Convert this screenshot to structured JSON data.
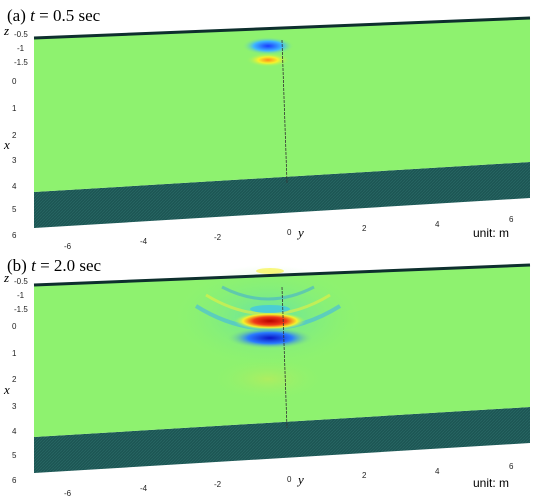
{
  "panels": [
    {
      "prefix": "(a)",
      "var": "t",
      "eq": "= 0.5 sec",
      "z_label": "z",
      "x_label": "x",
      "y_label": "y",
      "z_ticks": [
        "-0.5",
        "-1",
        "-1.5"
      ],
      "x_ticks": [
        "0",
        "1",
        "2",
        "3",
        "4",
        "5",
        "6"
      ],
      "y_ticks": [
        "-6",
        "-4",
        "-2",
        "0",
        "2",
        "4",
        "6"
      ],
      "unit": "unit: m",
      "colors": {
        "plane": "#8ef26f",
        "side": "#1d5654",
        "blue": "#1a3cff",
        "red": "#e01616",
        "yellow": "#f6f22c"
      }
    },
    {
      "prefix": "(b)",
      "var": "t",
      "eq": "= 2.0 sec",
      "z_label": "z",
      "x_label": "x",
      "y_label": "y",
      "z_ticks": [
        "-0.5",
        "-1",
        "-1.5"
      ],
      "x_ticks": [
        "0",
        "1",
        "2",
        "3",
        "4",
        "5",
        "6"
      ],
      "y_ticks": [
        "-6",
        "-4",
        "-2",
        "0",
        "2",
        "4",
        "6"
      ],
      "unit": "unit: m",
      "colors": {
        "plane": "#8ef26f",
        "side": "#1d5654",
        "blue": "#1a3cff",
        "red": "#e01616",
        "yellow": "#f6f22c"
      }
    }
  ]
}
